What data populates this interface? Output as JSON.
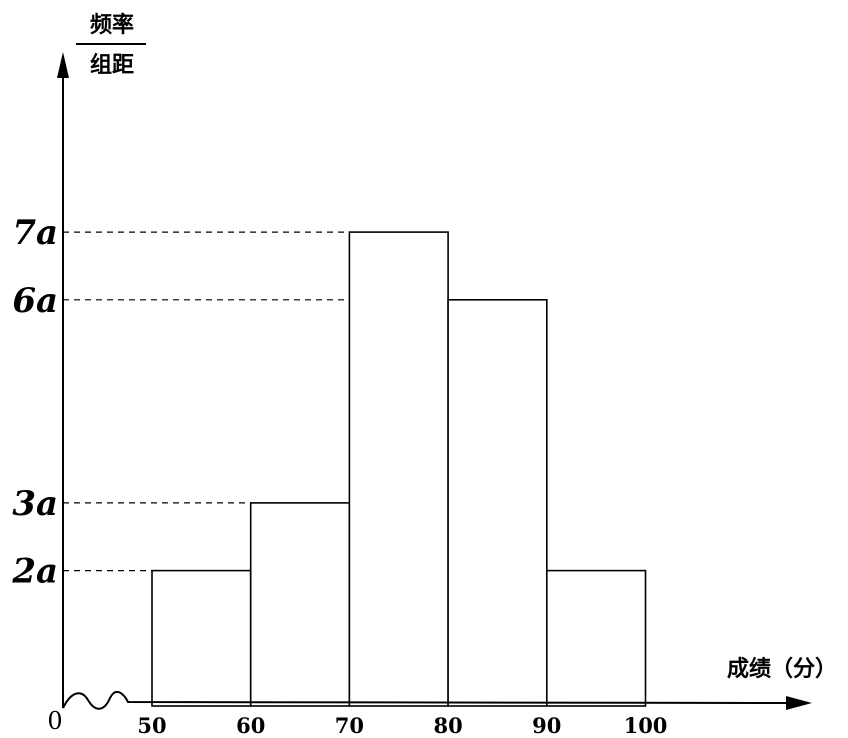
{
  "chart_data": {
    "type": "bar",
    "style": "histogram",
    "bins": [
      {
        "from": 50,
        "to": 60,
        "value": 2,
        "label": "2a"
      },
      {
        "from": 60,
        "to": 70,
        "value": 3,
        "label": "3a"
      },
      {
        "from": 70,
        "to": 80,
        "value": 7,
        "label": "7a"
      },
      {
        "from": 80,
        "to": 90,
        "value": 6,
        "label": "6a"
      },
      {
        "from": 90,
        "to": 100,
        "value": 2,
        "label": "2a"
      }
    ],
    "x_ticks": [
      "50",
      "60",
      "70",
      "80",
      "90",
      "100"
    ],
    "y_ticks": [
      {
        "value": 2,
        "label": "2a"
      },
      {
        "value": 3,
        "label": "3a"
      },
      {
        "value": 6,
        "label": "6a"
      },
      {
        "value": 7,
        "label": "7a"
      }
    ],
    "origin_label": "0",
    "xlabel": "成绩（分）",
    "ylabel_numerator": "频率",
    "ylabel_denominator": "组距",
    "xlim": [
      50,
      100
    ],
    "ylim": [
      0,
      7
    ],
    "grid": false,
    "dashed_reference_lines": true
  }
}
